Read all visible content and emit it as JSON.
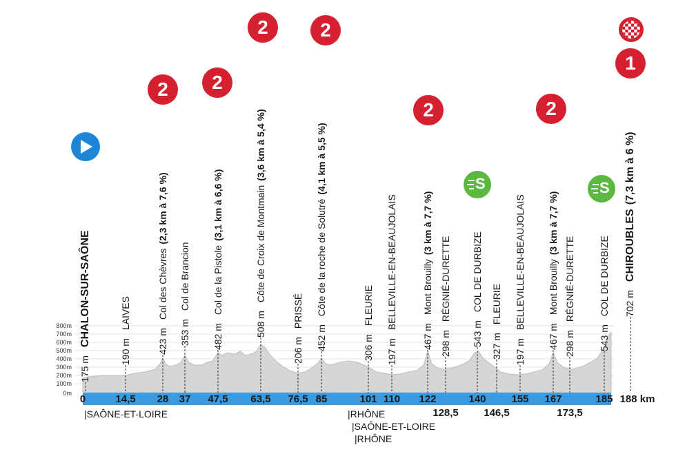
{
  "profile": {
    "y_axis_ticks": [
      "800m",
      "700m",
      "600m",
      "500m",
      "400m",
      "300m",
      "200m",
      "100m",
      "0m"
    ],
    "km_ticks_on_bar": [
      "0",
      "14,5",
      "28",
      "37",
      "47,5",
      "63,5",
      "76,5",
      "85",
      "101",
      "110",
      "122",
      "140",
      "155",
      "167",
      "185"
    ],
    "km_ticks_below": [
      "128,5",
      "146,5",
      "173,5"
    ],
    "total_distance": "188 km",
    "regions": [
      "|SAÔNE-ET-LOIRE",
      "|RHÔNE",
      "|SAÔNE-ET-LOIRE",
      "|RHÔNE"
    ],
    "colors": {
      "bar": "#3a9be0",
      "profile_fill": "#d6d6d6",
      "climb_badge": "#d4202f",
      "sprint_badge": "#5cb841",
      "start_badge": "#1e86d6"
    }
  },
  "points": [
    {
      "alt": "175 m",
      "name": "CHALON-SUR-SAÔNE",
      "pct": ""
    },
    {
      "alt": "190 m",
      "name": "LAIVES",
      "pct": ""
    },
    {
      "alt": "423 m",
      "name": "Col des Chèvres",
      "pct": "(2,3 km à 7,6 %)"
    },
    {
      "alt": "353 m",
      "name": "Col de Brancion",
      "pct": ""
    },
    {
      "alt": "482 m",
      "name": "Col de la Pistole",
      "pct": "(3,1 km à 6,6 %)"
    },
    {
      "alt": "508 m",
      "name": "Côte de Croix de Montmain",
      "pct": "(3,6 km à 5,4 %)"
    },
    {
      "alt": "206 m",
      "name": "PRISSÉ",
      "pct": ""
    },
    {
      "alt": "452 m",
      "name": "Côte de la roche de Solutré",
      "pct": "(4,1 km à 5,5 %)"
    },
    {
      "alt": "306 m",
      "name": "FLEURIE",
      "pct": ""
    },
    {
      "alt": "197 m",
      "name": "BELLEVILLE-EN-BEAUJOLAIS",
      "pct": ""
    },
    {
      "alt": "467 m",
      "name": "Mont Brouilly",
      "pct": "(3 km à 7,7 %)"
    },
    {
      "alt": "298 m",
      "name": "RÉGNIÉ-DURETTE",
      "pct": ""
    },
    {
      "alt": "543 m",
      "name": "COL DE DURBIZE",
      "pct": ""
    },
    {
      "alt": "327 m",
      "name": "FLEURIE",
      "pct": ""
    },
    {
      "alt": "197 m",
      "name": "BELLEVILLE-EN-BEAUJOLAIS",
      "pct": ""
    },
    {
      "alt": "467 m",
      "name": "Mont Brouilly",
      "pct": "(3 km à 7,7 %)"
    },
    {
      "alt": "298 m",
      "name": "RÉGNIÉ-DURETTE",
      "pct": ""
    },
    {
      "alt": "543 m",
      "name": "COL DE DURBIZE",
      "pct": ""
    },
    {
      "alt": "702 m",
      "name": "CHIROUBLES",
      "pct": "(7,3 km à 6 %)"
    }
  ],
  "badges": {
    "climb_2": "2",
    "climb_1": "1",
    "sprint": "S"
  }
}
